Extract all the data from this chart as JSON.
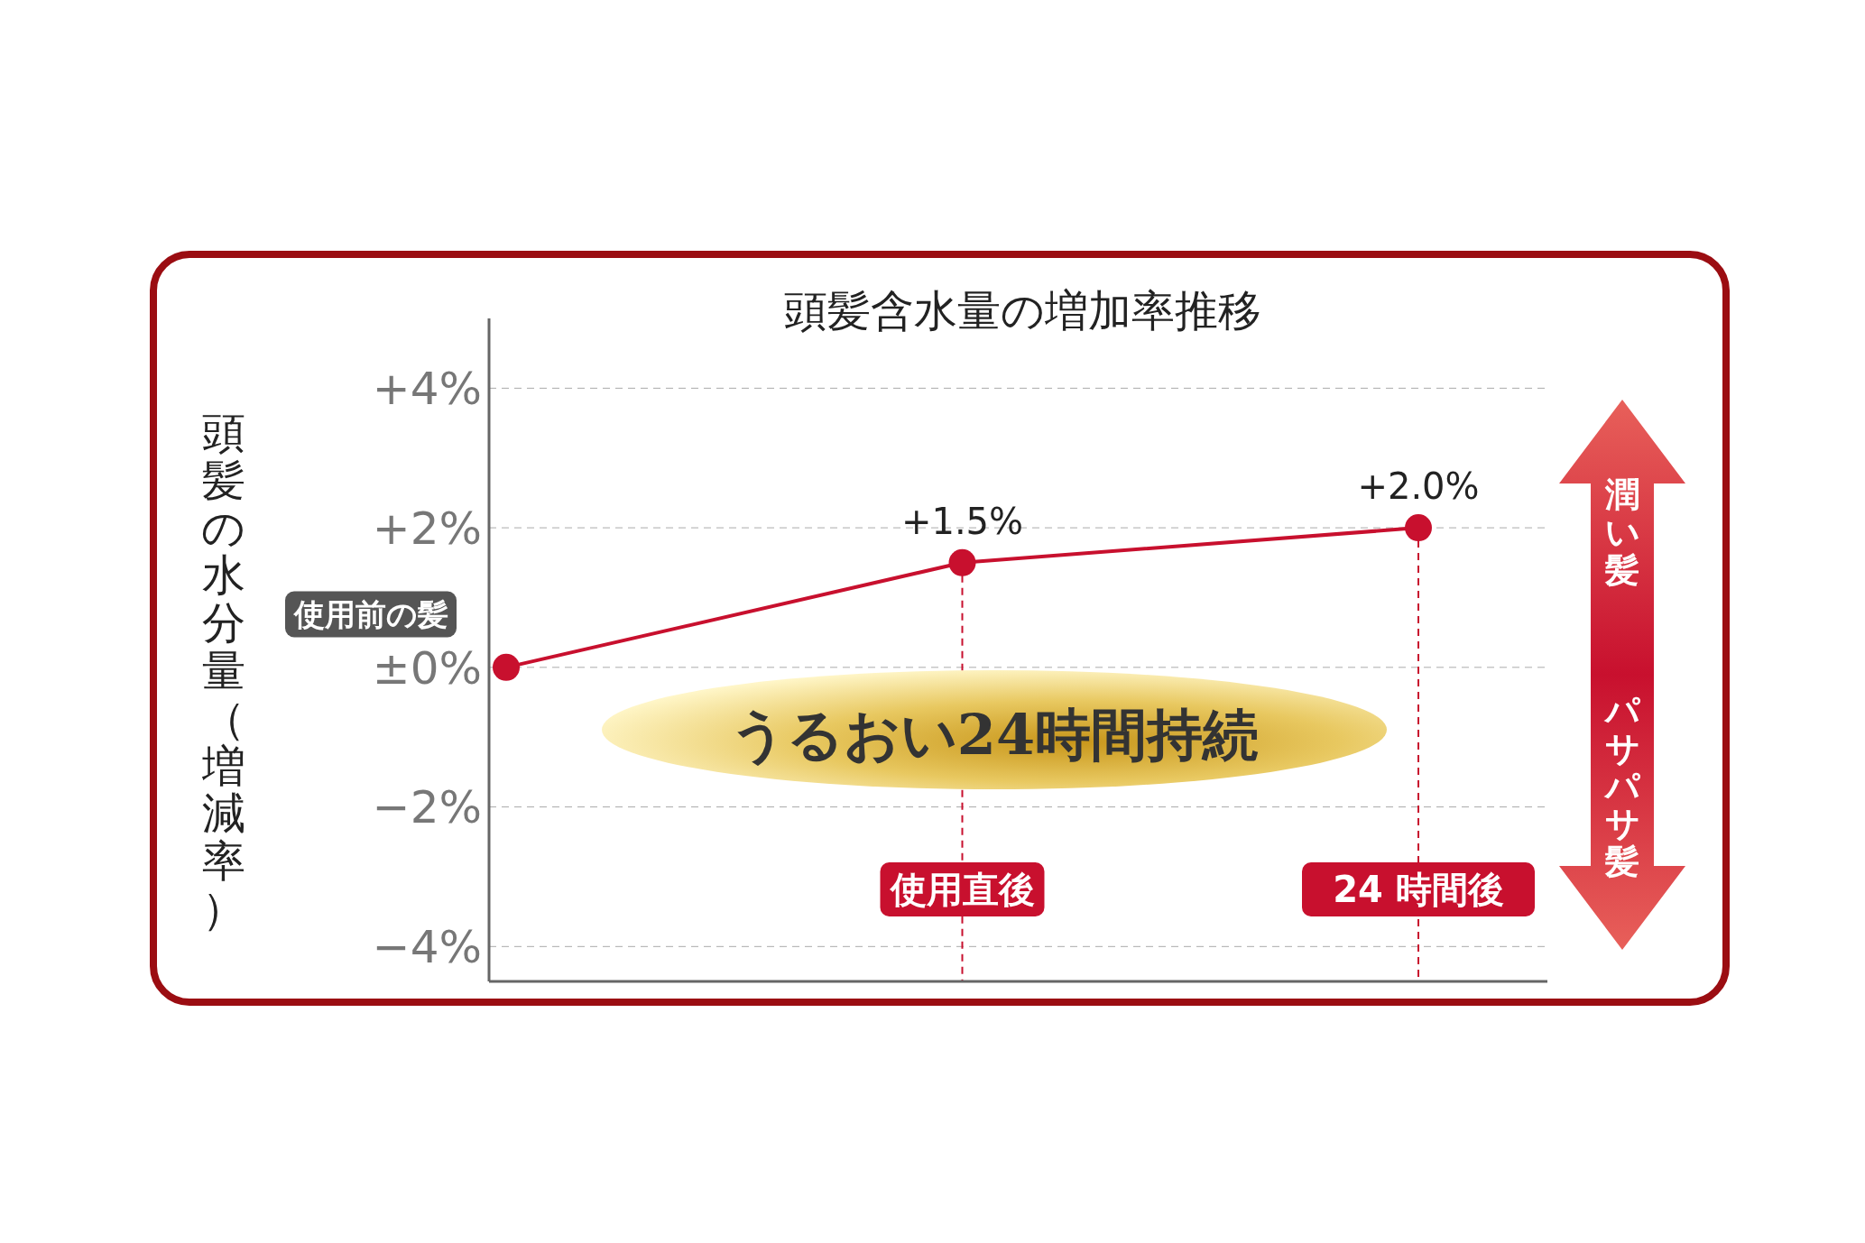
{
  "chart_data": {
    "type": "line",
    "title": "頭髪含水量の増加率推移",
    "ylabel": "頭髪の水分量（増減率）",
    "categories": [
      "使用前の髪",
      "使用直後",
      "24 時間後"
    ],
    "values": [
      0,
      1.5,
      2.0
    ],
    "value_labels": [
      null,
      "+1.5%",
      "+2.0%"
    ],
    "color": "#c8102e",
    "marker": "circle",
    "line_style": "solid",
    "ylim": [
      -4.5,
      5
    ],
    "yticks": [
      {
        "value": -4,
        "label": "−4%"
      },
      {
        "value": -2,
        "label": "−2%"
      },
      {
        "value": 0,
        "label": "±0%"
      },
      {
        "value": 2,
        "label": "+2%"
      },
      {
        "value": 4,
        "label": "+4%"
      }
    ],
    "grid": "y",
    "ref_lines": [
      {
        "axis": "x",
        "value": "使用直後",
        "color": "#c8102e",
        "line_style": "dashed"
      },
      {
        "axis": "x",
        "value": "24 時間後",
        "color": "#c8102e",
        "line_style": "dashed"
      }
    ],
    "annotations": [
      "うるおい24時間持続",
      "潤い髪",
      "パサパサ髪"
    ]
  }
}
